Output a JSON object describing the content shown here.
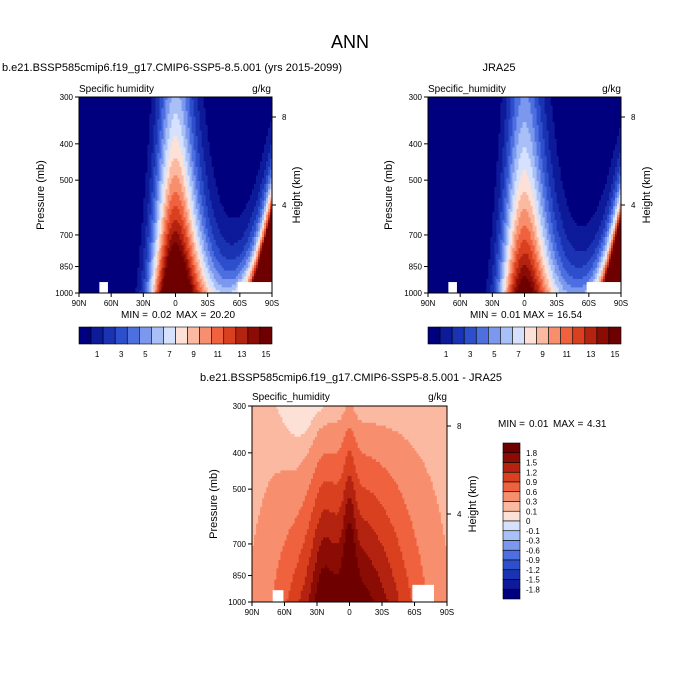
{
  "figure": {
    "title": "ANN"
  },
  "chart_data": [
    {
      "type": "heatmap",
      "title": "b.e21.BSSP585cmip6.f19_g17.CMIP6-SSP5-8.5.001 (yrs 2015-2099)",
      "left_label": "Specific humidity",
      "units": "g/kg",
      "ylabel": "Pressure (mb)",
      "y2label": "Height (km)",
      "x_ticks": [
        "90N",
        "60N",
        "30N",
        "0",
        "30S",
        "60S",
        "90S"
      ],
      "y_ticks": [
        "300",
        "400",
        "500",
        "700",
        "850",
        "1000"
      ],
      "y2_ticks": [
        "8",
        "4"
      ],
      "stats": {
        "min_label": "MIN =",
        "min": "0.02",
        "max_label": "MAX =",
        "max": "20.20"
      },
      "levels": [
        "1",
        "3",
        "5",
        "7",
        "9",
        "11",
        "13",
        "15"
      ],
      "peak_g_per_kg": 20.2
    },
    {
      "type": "heatmap",
      "title": "JRA25",
      "left_label": "Specific_humidity",
      "units": "g/kg",
      "ylabel": "Pressure (mb)",
      "y2label": "Height (km)",
      "x_ticks": [
        "90N",
        "60N",
        "30N",
        "0",
        "30S",
        "60S",
        "90S"
      ],
      "y_ticks": [
        "300",
        "400",
        "500",
        "700",
        "850",
        "1000"
      ],
      "y2_ticks": [
        "8",
        "4"
      ],
      "stats": {
        "min_label": "MIN =",
        "min": "0.01",
        "max_label": "MAX =",
        "max": "16.54"
      },
      "levels": [
        "1",
        "3",
        "5",
        "7",
        "9",
        "11",
        "13",
        "15"
      ],
      "peak_g_per_kg": 16.54
    },
    {
      "type": "heatmap",
      "title": "b.e21.BSSP585cmip6.f19_g17.CMIP6-SSP5-8.5.001 - JRA25",
      "left_label": "Specific_humidity",
      "units": "g/kg",
      "ylabel": "Pressure (mb)",
      "y2label": "Height (km)",
      "x_ticks": [
        "90N",
        "60N",
        "30N",
        "0",
        "30S",
        "60S",
        "90S"
      ],
      "y_ticks": [
        "300",
        "400",
        "500",
        "700",
        "850",
        "1000"
      ],
      "y2_ticks": [
        "8",
        "4"
      ],
      "stats": {
        "min_label": "MIN =",
        "min": "0.01",
        "max_label": "MAX =",
        "max": "4.31"
      },
      "levels": [
        "1.8",
        "1.5",
        "1.2",
        "0.9",
        "0.6",
        "0.3",
        "0.1",
        "0",
        "-0.1",
        "-0.3",
        "-0.6",
        "-0.9",
        "-1.2",
        "-1.5",
        "-1.8"
      ]
    }
  ],
  "colors": {
    "abs_palette": [
      "#00007f",
      "#0d1a99",
      "#1a33b3",
      "#2e4fcc",
      "#4d6fe0",
      "#7b98ee",
      "#a9c0f7",
      "#d6e2fd",
      "#fde0d6",
      "#fbb9a1",
      "#f78f6e",
      "#f0623f",
      "#d9401f",
      "#b32310",
      "#8a0c04",
      "#6e0000"
    ],
    "diff_palette": [
      "#00007f",
      "#0d1a99",
      "#1a33b3",
      "#2e4fcc",
      "#4d6fe0",
      "#7b98ee",
      "#a9c0f7",
      "#d6e2fd",
      "#fde0d6",
      "#fbb9a1",
      "#f78f6e",
      "#f0623f",
      "#d9401f",
      "#b32310",
      "#8a0c04",
      "#6e0000"
    ]
  }
}
